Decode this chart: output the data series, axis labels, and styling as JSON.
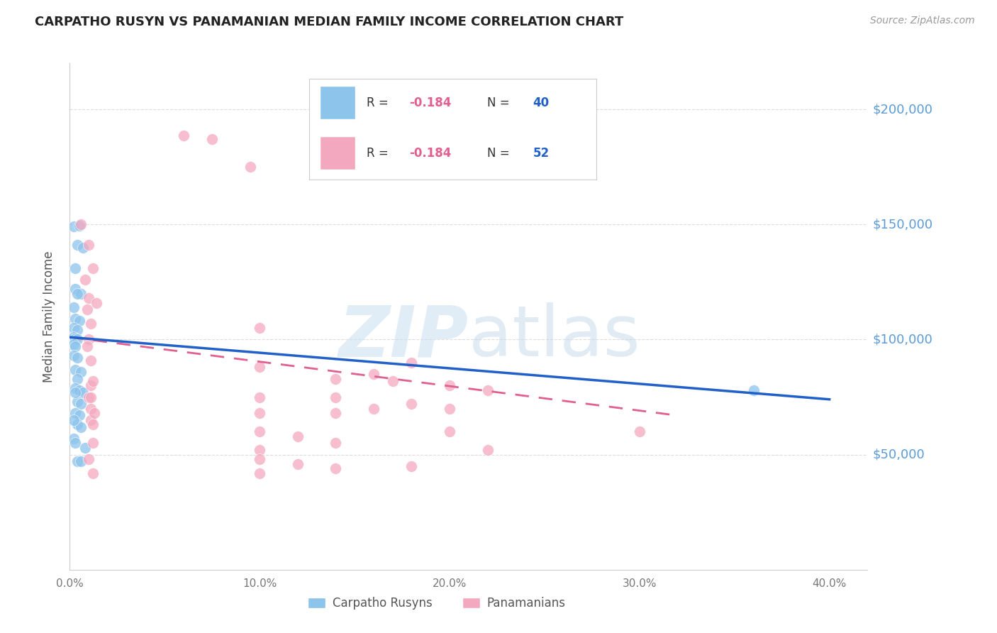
{
  "title": "CARPATHO RUSYN VS PANAMANIAN MEDIAN FAMILY INCOME CORRELATION CHART",
  "source": "Source: ZipAtlas.com",
  "ylabel": "Median Family Income",
  "ylim": [
    0,
    220000
  ],
  "xlim": [
    0.0,
    0.42
  ],
  "carpatho_color": "#8DC4EC",
  "panamanian_color": "#F4A8C0",
  "trendline_carpatho_color": "#2060C8",
  "trendline_panamanian_color": "#E06090",
  "carpatho_R": "-0.184",
  "carpatho_N": "40",
  "panamanian_R": "-0.184",
  "panamanian_N": "52",
  "R_color": "#E06090",
  "N_color": "#2060C8",
  "legend_text_color": "#333333",
  "right_label_color": "#5B9BD5",
  "title_color": "#222222",
  "source_color": "#999999",
  "axis_color": "#CCCCCC",
  "tick_label_color": "#777777",
  "ylabel_color": "#555555",
  "grid_color": "#DDDDDD",
  "carpatho_points": [
    [
      0.002,
      149000
    ],
    [
      0.005,
      149500
    ],
    [
      0.004,
      141000
    ],
    [
      0.007,
      140000
    ],
    [
      0.003,
      131000
    ],
    [
      0.003,
      122000
    ],
    [
      0.006,
      120000
    ],
    [
      0.002,
      114000
    ],
    [
      0.003,
      109000
    ],
    [
      0.005,
      108000
    ],
    [
      0.002,
      105000
    ],
    [
      0.004,
      104000
    ],
    [
      0.002,
      101000
    ],
    [
      0.003,
      100500
    ],
    [
      0.004,
      100000
    ],
    [
      0.002,
      98000
    ],
    [
      0.003,
      97000
    ],
    [
      0.002,
      93000
    ],
    [
      0.004,
      92000
    ],
    [
      0.003,
      87000
    ],
    [
      0.006,
      86000
    ],
    [
      0.004,
      83000
    ],
    [
      0.003,
      79000
    ],
    [
      0.005,
      78000
    ],
    [
      0.007,
      77000
    ],
    [
      0.004,
      73000
    ],
    [
      0.006,
      72000
    ],
    [
      0.003,
      68000
    ],
    [
      0.005,
      67000
    ],
    [
      0.004,
      63000
    ],
    [
      0.006,
      62000
    ],
    [
      0.003,
      77000
    ],
    [
      0.004,
      120000
    ],
    [
      0.008,
      53000
    ],
    [
      0.002,
      57000
    ],
    [
      0.004,
      47000
    ],
    [
      0.006,
      47000
    ],
    [
      0.36,
      78000
    ],
    [
      0.003,
      55000
    ],
    [
      0.002,
      65000
    ]
  ],
  "panamanian_points": [
    [
      0.06,
      188500
    ],
    [
      0.075,
      187000
    ],
    [
      0.095,
      175000
    ],
    [
      0.006,
      150000
    ],
    [
      0.01,
      141000
    ],
    [
      0.012,
      131000
    ],
    [
      0.008,
      126000
    ],
    [
      0.01,
      118000
    ],
    [
      0.014,
      116000
    ],
    [
      0.009,
      113000
    ],
    [
      0.011,
      107000
    ],
    [
      0.1,
      105000
    ],
    [
      0.01,
      100000
    ],
    [
      0.009,
      97000
    ],
    [
      0.011,
      91000
    ],
    [
      0.18,
      90000
    ],
    [
      0.1,
      88000
    ],
    [
      0.16,
      85000
    ],
    [
      0.14,
      83000
    ],
    [
      0.011,
      80000
    ],
    [
      0.17,
      82000
    ],
    [
      0.01,
      75000
    ],
    [
      0.22,
      78000
    ],
    [
      0.011,
      70000
    ],
    [
      0.18,
      72000
    ],
    [
      0.2,
      70000
    ],
    [
      0.14,
      68000
    ],
    [
      0.011,
      65000
    ],
    [
      0.1,
      60000
    ],
    [
      0.2,
      60000
    ],
    [
      0.12,
      58000
    ],
    [
      0.14,
      55000
    ],
    [
      0.1,
      52000
    ],
    [
      0.22,
      52000
    ],
    [
      0.1,
      48000
    ],
    [
      0.3,
      60000
    ],
    [
      0.12,
      46000
    ],
    [
      0.14,
      44000
    ],
    [
      0.012,
      55000
    ],
    [
      0.01,
      48000
    ],
    [
      0.1,
      42000
    ],
    [
      0.012,
      42000
    ],
    [
      0.18,
      45000
    ],
    [
      0.2,
      80000
    ],
    [
      0.012,
      63000
    ],
    [
      0.013,
      68000
    ],
    [
      0.1,
      68000
    ],
    [
      0.16,
      70000
    ],
    [
      0.011,
      75000
    ],
    [
      0.012,
      82000
    ],
    [
      0.1,
      75000
    ],
    [
      0.14,
      75000
    ]
  ],
  "panamanian_trend_xmax": 0.32
}
